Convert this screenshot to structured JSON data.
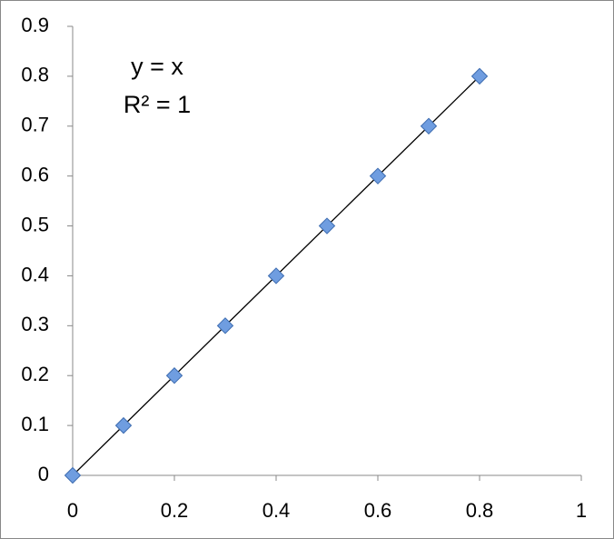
{
  "chart_data": {
    "type": "scatter",
    "annotations": [
      "y = x",
      "R² = 1"
    ],
    "series": [
      {
        "color": "#6f9de0",
        "x": [
          0,
          0.1,
          0.2,
          0.3,
          0.4,
          0.5,
          0.6,
          0.7,
          0.8
        ],
        "values": [
          0,
          0.1,
          0.2,
          0.3,
          0.4,
          0.5,
          0.6,
          0.7,
          0.8
        ]
      }
    ],
    "trendline": true,
    "xlim": [
      0,
      1
    ],
    "xticks": [
      0,
      0.2,
      0.4,
      0.6,
      0.8,
      1
    ],
    "ylim": [
      0,
      0.9
    ],
    "yticks": [
      0,
      0.1,
      0.2,
      0.3,
      0.4,
      0.5,
      0.6,
      0.7,
      0.8,
      0.9
    ],
    "grid": false
  }
}
